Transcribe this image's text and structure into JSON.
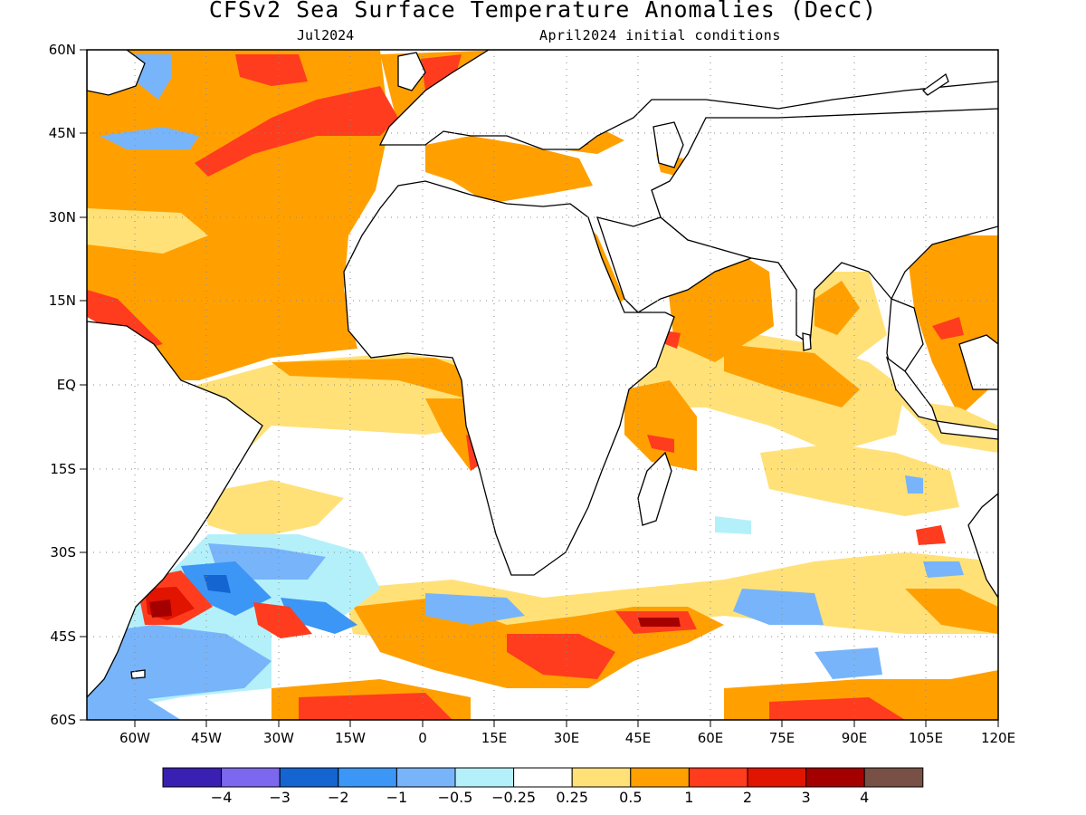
{
  "header": {
    "title": "CFSv2 Sea Surface Temperature Anomalies (DecC)",
    "valid_month": "Jul2024",
    "initial_conditions": "April2024 initial conditions"
  },
  "map": {
    "lat_labels": [
      "60N",
      "45N",
      "30N",
      "15N",
      "EQ",
      "15S",
      "30S",
      "45S",
      "60S"
    ],
    "lon_labels": [
      "60W",
      "45W",
      "30W",
      "15W",
      "0",
      "15E",
      "30E",
      "45E",
      "60E",
      "75E",
      "90E",
      "105E",
      "120E"
    ],
    "lon_range": [
      -70,
      120
    ],
    "lat_range": [
      -60,
      60
    ],
    "gridlines": "dotted",
    "land_fill": "#ffffff",
    "coast_color": "#000000"
  },
  "colorbar": {
    "labels": [
      "−4",
      "−3",
      "−2",
      "−1",
      "−0.5",
      "−0.25",
      "0.25",
      "0.5",
      "1",
      "2",
      "3",
      "4"
    ],
    "colors": [
      "#3a1fb3",
      "#7b68ee",
      "#1464d2",
      "#3c96f5",
      "#78b4fa",
      "#b4f0fa",
      "#ffffff",
      "#ffe178",
      "#ffa000",
      "#ff3c1e",
      "#e11400",
      "#a50000",
      "#785046"
    ]
  }
}
